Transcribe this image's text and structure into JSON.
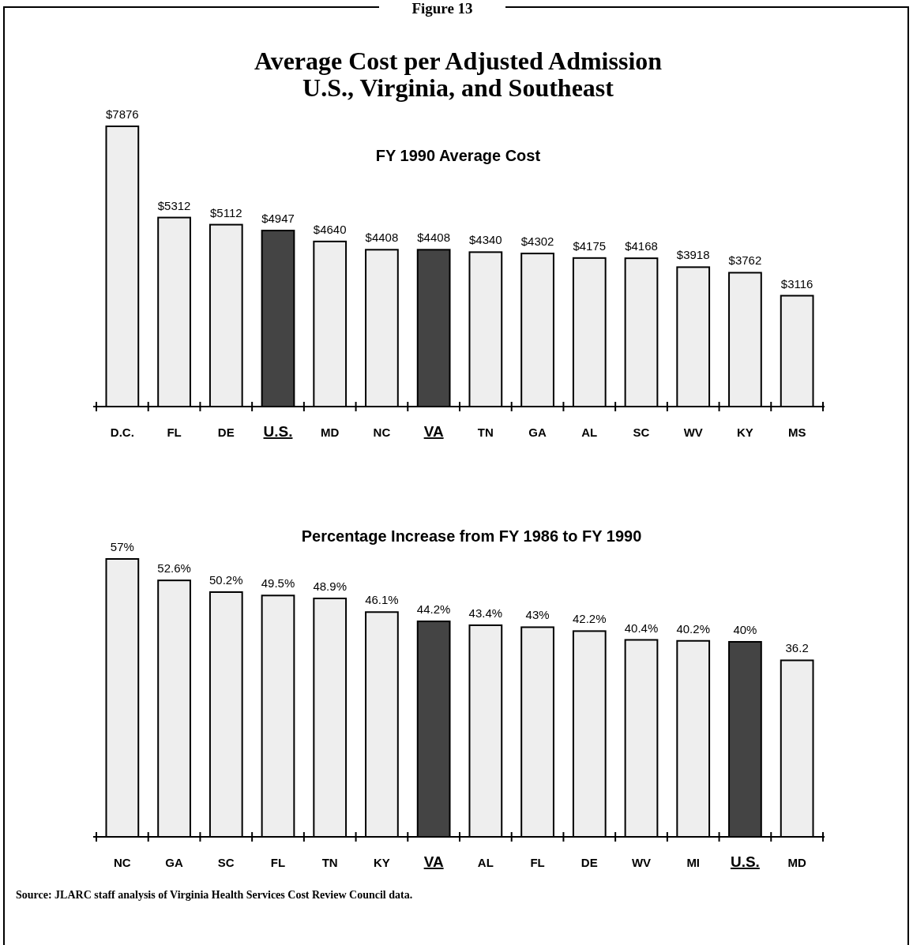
{
  "chart_data": [
    {
      "type": "bar",
      "title": "Average Cost per Adjusted Admission\nU.S., Virginia, and Southeast",
      "subtitle": "FY 1990 Average Cost",
      "annotations": [
        "Figure 13"
      ],
      "categories": [
        "D.C.",
        "FL",
        "DE",
        "U.S.",
        "MD",
        "NC",
        "VA",
        "TN",
        "GA",
        "AL",
        "SC",
        "WV",
        "KY",
        "MS"
      ],
      "values": [
        7876,
        5312,
        5112,
        4947,
        4640,
        4408,
        4408,
        4340,
        4302,
        4175,
        4168,
        3918,
        3762,
        3116
      ],
      "value_labels": [
        "$7876",
        "$5312",
        "$5112",
        "$4947",
        "$4640",
        "$4408",
        "$4408",
        "$4340",
        "$4302",
        "$4175",
        "$4168",
        "$3918",
        "$3762",
        "$3116"
      ],
      "colors": [
        "#eeeeee",
        "#eeeeee",
        "#eeeeee",
        "#444444",
        "#eeeeee",
        "#eeeeee",
        "#444444",
        "#eeeeee",
        "#eeeeee",
        "#eeeeee",
        "#eeeeee",
        "#eeeeee",
        "#eeeeee",
        "#eeeeee"
      ]
    },
    {
      "type": "bar",
      "title": "Percentage Increase from FY 1986 to FY 1990",
      "annotations": [
        "Source:  JLARC staff analysis of Virginia Health Services Cost Review Council data."
      ],
      "categories": [
        "NC",
        "GA",
        "SC",
        "FL",
        "TN",
        "KY",
        "VA",
        "AL",
        "FL",
        "DE",
        "WV",
        "MI",
        "U.S.",
        "MD"
      ],
      "values": [
        57,
        52.6,
        50.2,
        49.5,
        48.9,
        46.1,
        44.2,
        43.4,
        43,
        42.2,
        40.4,
        40.2,
        40,
        36.2
      ],
      "value_labels": [
        "57%",
        "52.6%",
        "50.2%",
        "49.5%",
        "48.9%",
        "46.1%",
        "44.2%",
        "43.4%",
        "43%",
        "42.2%",
        "40.4%",
        "40.2%",
        "40%",
        "36.2"
      ],
      "colors": [
        "#eeeeee",
        "#eeeeee",
        "#eeeeee",
        "#eeeeee",
        "#eeeeee",
        "#eeeeee",
        "#444444",
        "#eeeeee",
        "#eeeeee",
        "#eeeeee",
        "#eeeeee",
        "#eeeeee",
        "#444444",
        "#eeeeee"
      ]
    }
  ]
}
